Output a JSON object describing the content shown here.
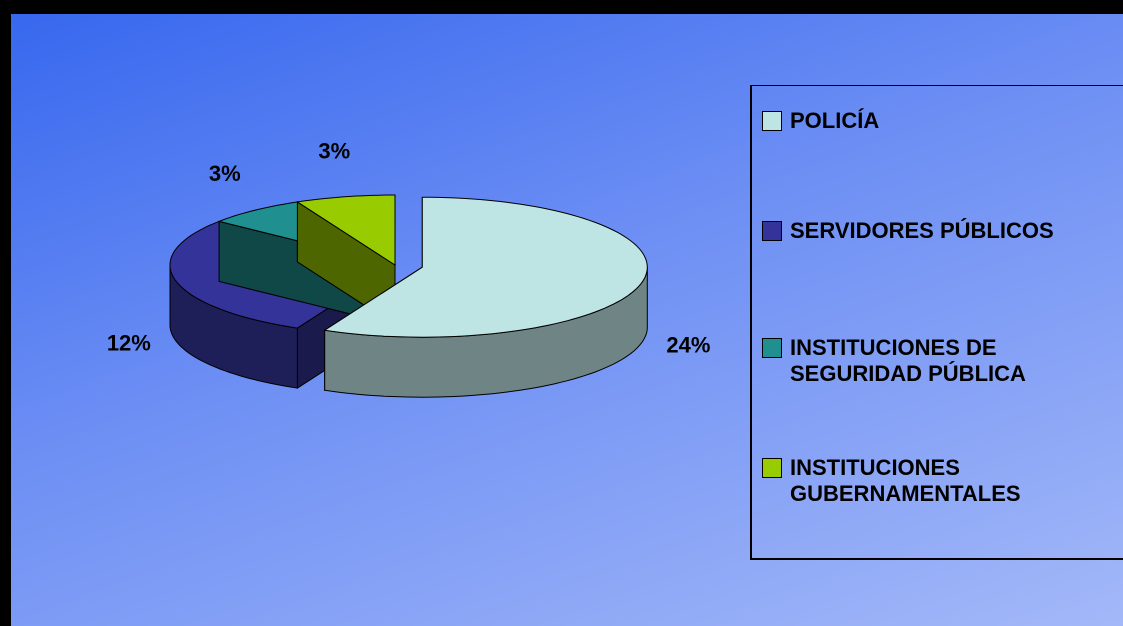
{
  "chart_data": {
    "type": "pie",
    "categories": [
      "POLICÍA",
      "SERVIDORES PÚBLICOS",
      "INSTITUCIONES DE SEGURIDAD PÚBLICA",
      "INSTITUCIONES GUBERNAMENTALES"
    ],
    "values": [
      24,
      12,
      3,
      3
    ],
    "value_labels": [
      "24%",
      "12%",
      "3%",
      "3%"
    ],
    "colors": [
      "#bfe4e4",
      "#333399",
      "#1f8f8f",
      "#99cc00"
    ]
  }
}
